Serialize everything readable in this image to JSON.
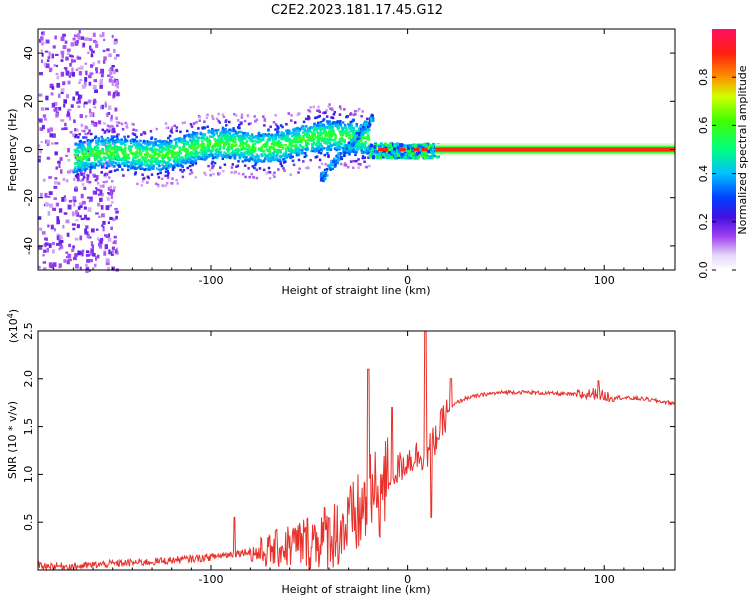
{
  "title": "C2E2.2023.181.17.45.G12",
  "chart_data": [
    {
      "type": "heatmap",
      "xlabel": "Height of straight line (km)",
      "ylabel": "Frequency (Hz)",
      "xlim": [
        -188,
        136
      ],
      "ylim": [
        -50,
        50
      ],
      "xticks": [
        -100,
        0,
        100
      ],
      "yticks": [
        -40,
        -20,
        0,
        20,
        40
      ],
      "colorbar": {
        "label": "Normalized spectral amplitude",
        "range": [
          0.0,
          1.0
        ],
        "ticks": [
          0.0,
          0.2,
          0.4,
          0.6,
          0.8
        ]
      },
      "ridge_description": "frequency ridge near 0 Hz; broad noisy band (about -10 to +10 Hz) below -20 km, narrow high-amplitude line at 0 Hz above ~15 km"
    },
    {
      "type": "line",
      "xlabel": "Height of straight line (km)",
      "ylabel": "SNR (10 * v/v)",
      "yscale_label": "(x10",
      "yscale_exp": "4",
      "xlim": [
        -188,
        136
      ],
      "ylim": [
        0,
        2.5
      ],
      "xticks": [
        -100,
        0,
        100
      ],
      "yticks": [
        0.5,
        1.0,
        1.5,
        2.0,
        2.5
      ],
      "ytick_labels": [
        "0.5",
        "1.0",
        "1.5",
        "2.0",
        "2.5"
      ],
      "series": [
        {
          "name": "SNR",
          "color": "#e8302a",
          "x": [
            -188,
            -170,
            -150,
            -130,
            -110,
            -100,
            -90,
            -80,
            -70,
            -60,
            -50,
            -40,
            -30,
            -25,
            -20,
            -15,
            -10,
            -5,
            0,
            5,
            10,
            15,
            20,
            25,
            30,
            40,
            50,
            60,
            70,
            80,
            90,
            95,
            100,
            110,
            120,
            130,
            136
          ],
          "y": [
            0.03,
            0.02,
            0.05,
            0.07,
            0.1,
            0.12,
            0.15,
            0.18,
            0.22,
            0.28,
            0.33,
            0.4,
            0.5,
            0.62,
            0.75,
            0.85,
            0.95,
            1.05,
            1.15,
            1.2,
            1.22,
            1.4,
            1.65,
            1.75,
            1.8,
            1.84,
            1.86,
            1.86,
            1.85,
            1.84,
            1.83,
            1.85,
            1.82,
            1.8,
            1.79,
            1.76,
            1.74
          ],
          "spikes": [
            {
              "x": -88,
              "y": 0.55
            },
            {
              "x": -20,
              "y": 2.1
            },
            {
              "x": -8,
              "y": 1.7
            },
            {
              "x": 9,
              "y": 2.5
            },
            {
              "x": 12,
              "y": 0.55
            },
            {
              "x": 22,
              "y": 2.0
            },
            {
              "x": 97,
              "y": 1.98
            }
          ]
        }
      ]
    }
  ]
}
